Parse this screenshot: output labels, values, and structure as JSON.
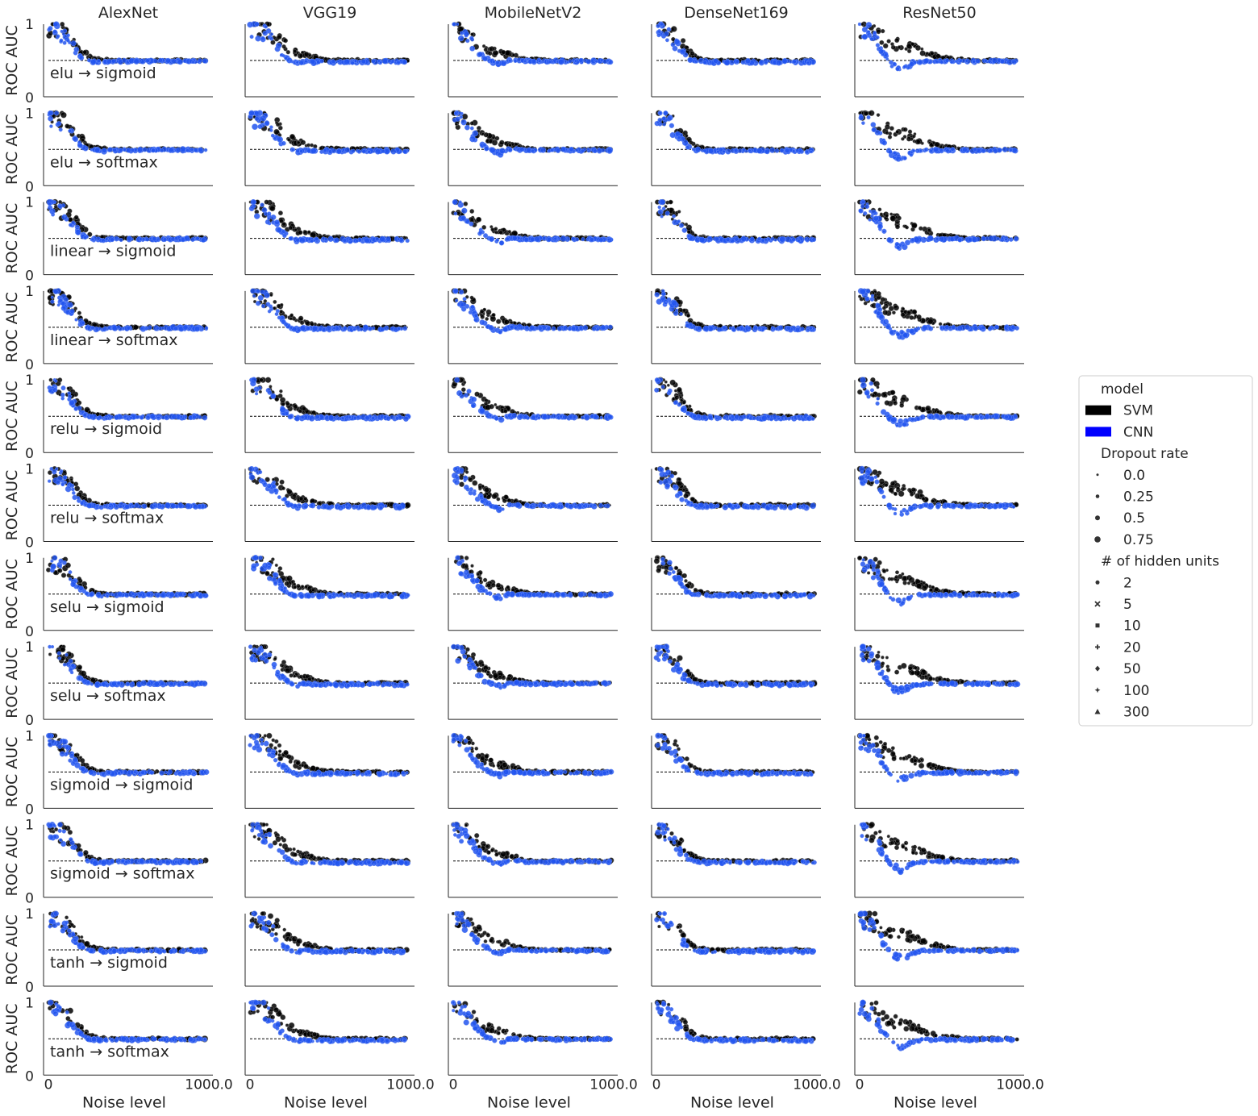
{
  "chart_data": {
    "type": "scatter",
    "layout": {
      "rows": 12,
      "cols": 5
    },
    "columns": [
      "AlexNet",
      "VGG19",
      "MobileNetV2",
      "DenseNet169",
      "ResNet50"
    ],
    "rows": [
      "elu → sigmoid",
      "elu → softmax",
      "linear → sigmoid",
      "linear → softmax",
      "relu → sigmoid",
      "relu → softmax",
      "selu → sigmoid",
      "selu → softmax",
      "sigmoid → sigmoid",
      "sigmoid → softmax",
      "tanh → sigmoid",
      "tanh → softmax"
    ],
    "xlabel": "Noise level",
    "ylabel": "ROC AUC",
    "xlim": [
      0,
      1000
    ],
    "ylim": [
      0,
      1
    ],
    "x_ticks": [
      "0",
      "1000.0"
    ],
    "y_ticks": [
      "0",
      "1"
    ],
    "reference_line": {
      "y": 0.5,
      "style": "dashed"
    },
    "grid": false,
    "series_summary": {
      "SVM": {
        "x": [
          0,
          50,
          100,
          150,
          200,
          250,
          300,
          350,
          400,
          450,
          500,
          600,
          700,
          800,
          900,
          1000
        ],
        "AlexNet": [
          1.0,
          0.95,
          0.88,
          0.78,
          0.66,
          0.56,
          0.52,
          0.51,
          0.5,
          0.5,
          0.5,
          0.5,
          0.5,
          0.5,
          0.5,
          0.5
        ],
        "VGG19": [
          1.0,
          0.97,
          0.92,
          0.85,
          0.75,
          0.66,
          0.6,
          0.58,
          0.55,
          0.52,
          0.51,
          0.5,
          0.5,
          0.5,
          0.5,
          0.5
        ],
        "MobileNetV2": [
          1.0,
          0.93,
          0.85,
          0.76,
          0.68,
          0.63,
          0.6,
          0.58,
          0.55,
          0.52,
          0.51,
          0.5,
          0.5,
          0.5,
          0.5,
          0.5
        ],
        "DenseNet169": [
          1.0,
          0.96,
          0.88,
          0.76,
          0.63,
          0.54,
          0.51,
          0.5,
          0.5,
          0.5,
          0.5,
          0.5,
          0.5,
          0.5,
          0.5,
          0.5
        ],
        "ResNet50": [
          1.0,
          0.95,
          0.88,
          0.8,
          0.75,
          0.72,
          0.7,
          0.66,
          0.62,
          0.58,
          0.55,
          0.52,
          0.5,
          0.5,
          0.5,
          0.5
        ]
      },
      "CNN": {
        "x": [
          0,
          50,
          100,
          150,
          200,
          250,
          300,
          350,
          400,
          450,
          500,
          600,
          700,
          800,
          900,
          1000
        ],
        "AlexNet": [
          0.98,
          0.93,
          0.84,
          0.7,
          0.57,
          0.5,
          0.48,
          0.48,
          0.49,
          0.49,
          0.49,
          0.49,
          0.49,
          0.49,
          0.49,
          0.49
        ],
        "VGG19": [
          0.98,
          0.94,
          0.86,
          0.74,
          0.6,
          0.5,
          0.47,
          0.49,
          0.48,
          0.48,
          0.48,
          0.48,
          0.48,
          0.48,
          0.48,
          0.48
        ],
        "MobileNetV2": [
          0.98,
          0.9,
          0.78,
          0.64,
          0.54,
          0.48,
          0.45,
          0.5,
          0.5,
          0.49,
          0.49,
          0.49,
          0.49,
          0.49,
          0.49,
          0.49
        ],
        "DenseNet169": [
          0.98,
          0.92,
          0.8,
          0.65,
          0.53,
          0.49,
          0.48,
          0.48,
          0.48,
          0.48,
          0.48,
          0.48,
          0.48,
          0.48,
          0.48,
          0.48
        ],
        "ResNet50": [
          0.98,
          0.9,
          0.8,
          0.6,
          0.45,
          0.38,
          0.42,
          0.47,
          0.49,
          0.49,
          0.49,
          0.49,
          0.49,
          0.49,
          0.49,
          0.49
        ]
      }
    },
    "legend": {
      "placement": "right",
      "groups": [
        {
          "title": "model",
          "entries": [
            {
              "label": "SVM",
              "color": "#000000",
              "marker": "patch"
            },
            {
              "label": "CNN",
              "color": "#0000ff",
              "marker": "patch"
            }
          ]
        },
        {
          "title": "Dropout rate",
          "entries": [
            {
              "label": "0.0",
              "marker": "circle",
              "size": 1
            },
            {
              "label": "0.25",
              "marker": "circle",
              "size": 2
            },
            {
              "label": "0.5",
              "marker": "circle",
              "size": 3
            },
            {
              "label": "0.75",
              "marker": "circle",
              "size": 4
            }
          ]
        },
        {
          "title": "# of hidden units",
          "entries": [
            {
              "label": "2",
              "marker": "circle"
            },
            {
              "label": "5",
              "marker": "x"
            },
            {
              "label": "10",
              "marker": "square"
            },
            {
              "label": "20",
              "marker": "plus"
            },
            {
              "label": "50",
              "marker": "diamond"
            },
            {
              "label": "100",
              "marker": "star"
            },
            {
              "label": "300",
              "marker": "triangle"
            }
          ]
        }
      ]
    },
    "colors": {
      "svm": "#000000",
      "cnn": "#2255ee",
      "cnn_edge": "#6a8cf5",
      "svm_edge": "#888888"
    }
  }
}
